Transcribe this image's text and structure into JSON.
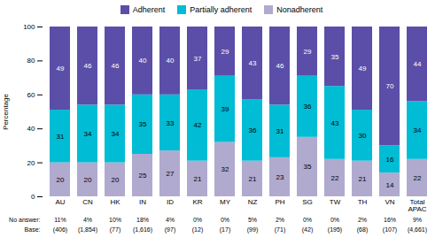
{
  "chart_data": {
    "type": "bar",
    "stacked": true,
    "data_labels": true,
    "legend": "top",
    "grid": false,
    "categories": [
      "AU",
      "CN",
      "HK",
      "IN",
      "ID",
      "KR",
      "MY",
      "NZ",
      "PH",
      "SG",
      "TW",
      "TH",
      "VN",
      "Total\nAPAC"
    ],
    "series": [
      {
        "name": "Nonadherent",
        "color": "#b0aacf",
        "values": [
          20,
          20,
          20,
          25,
          27,
          21,
          32,
          21,
          23,
          35,
          22,
          21,
          14,
          22
        ]
      },
      {
        "name": "Partially adherent",
        "color": "#00bcd4",
        "values": [
          31,
          34,
          34,
          35,
          33,
          42,
          39,
          36,
          31,
          36,
          43,
          30,
          16,
          34
        ]
      },
      {
        "name": "Adherent",
        "color": "#5b4ea8",
        "values": [
          49,
          46,
          46,
          40,
          40,
          37,
          29,
          43,
          46,
          29,
          35,
          49,
          70,
          44
        ]
      }
    ],
    "ylabel": "Percentage",
    "ylim": [
      0,
      100
    ],
    "yticks": [
      0,
      20,
      40,
      60,
      80,
      100
    ],
    "rows_below": [
      {
        "label": "No answer:",
        "values": [
          "11%",
          "4%",
          "10%",
          "18%",
          "4%",
          "0%",
          "0%",
          "5%",
          "2%",
          "0%",
          "0%",
          "2%",
          "16%",
          "9%"
        ]
      },
      {
        "label": "Base:",
        "values": [
          "(406)",
          "(1,854)",
          "(77)",
          "(1,616)",
          "(97)",
          "(12)",
          "(17)",
          "(99)",
          "(71)",
          "(42)",
          "(195)",
          "(68)",
          "(107)",
          "(4,661)"
        ]
      }
    ]
  }
}
